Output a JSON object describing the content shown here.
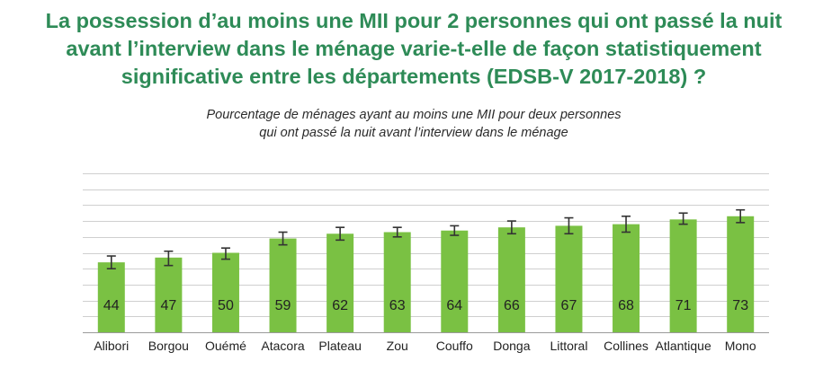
{
  "title_lines": [
    "La possession d’au moins une MII pour 2 personnes qui ont passé la nuit",
    "avant l’interview dans le ménage varie-t-elle de façon statistiquement",
    "significative entre les départements (EDSB-V 2017-2018) ?"
  ],
  "subtitle_lines": [
    "Pourcentage de ménages ayant au moins une MII pour deux personnes",
    "qui ont passé la nuit avant l’interview dans le ménage"
  ],
  "colors": {
    "title": "#2e8b57",
    "bar": "#7ac143",
    "grid": "#cfcfcf",
    "error": "#333333"
  },
  "chart_data": {
    "type": "bar",
    "title": "La possession d’au moins une MII pour 2 personnes qui ont passé la nuit avant l’interview dans le ménage varie-t-elle de façon statistiquement significative entre les départements (EDSB-V 2017-2018) ?",
    "subtitle": "Pourcentage de ménages ayant au moins une MII pour deux personnes qui ont passé la nuit avant l’interview dans le ménage",
    "categories": [
      "Alibori",
      "Borgou",
      "Ouémé",
      "Atacora",
      "Plateau",
      "Zou",
      "Couffo",
      "Donga",
      "Littoral",
      "Collines",
      "Atlantique",
      "Mono"
    ],
    "values": [
      44,
      47,
      50,
      59,
      62,
      63,
      64,
      66,
      67,
      68,
      71,
      73
    ],
    "error_low": [
      40,
      42,
      46,
      55,
      58,
      60,
      61,
      62,
      62,
      63,
      68,
      69
    ],
    "error_high": [
      48,
      51,
      53,
      63,
      66,
      66,
      67,
      70,
      72,
      73,
      75,
      77
    ],
    "ylim": [
      0,
      100
    ],
    "grid": true,
    "xlabel": "",
    "ylabel": ""
  }
}
